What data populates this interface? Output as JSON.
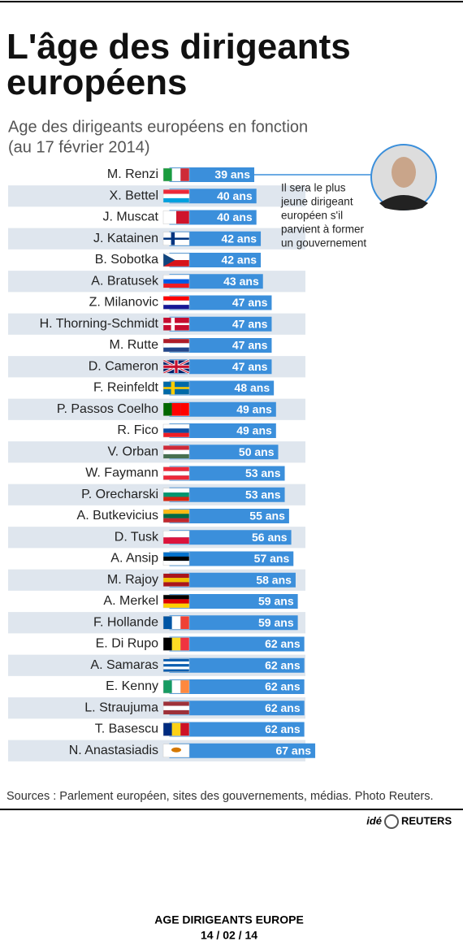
{
  "chart_data": {
    "type": "bar",
    "title": "L'âge des dirigeants européens",
    "subtitle": [
      "Age des dirigeants européens en fonction",
      "(au 17 février 2014)"
    ],
    "categories": [
      "M. Renzi",
      "X. Bettel",
      "J. Muscat",
      "J. Katainen",
      "B. Sobotka",
      "A. Bratusek",
      "Z. Milanovic",
      "H. Thorning-Schmidt",
      "M. Rutte",
      "D. Cameron",
      "F. Reinfeldt",
      "P. Passos Coelho",
      "R. Fico",
      "V. Orban",
      "W. Faymann",
      "P. Orecharski",
      "A. Butkevicius",
      "D. Tusk",
      "A. Ansip",
      "M. Rajoy",
      "A. Merkel",
      "F. Hollande",
      "E. Di Rupo",
      "A. Samaras",
      "E. Kenny",
      "L. Straujuma",
      "T. Basescu",
      "N. Anastasiadis"
    ],
    "values": [
      39,
      40,
      40,
      42,
      42,
      43,
      47,
      47,
      47,
      47,
      48,
      49,
      49,
      50,
      53,
      53,
      55,
      56,
      57,
      58,
      59,
      59,
      62,
      62,
      62,
      62,
      62,
      67
    ],
    "value_labels": [
      "39 ans",
      "40 ans",
      "40 ans",
      "42 ans",
      "42 ans",
      "43 ans",
      "47 ans",
      "47 ans",
      "47 ans",
      "47 ans",
      "48 ans",
      "49 ans",
      "49 ans",
      "50 ans",
      "53 ans",
      "53 ans",
      "55 ans",
      "56 ans",
      "57 ans",
      "58 ans",
      "59 ans",
      "59 ans",
      "62 ans",
      "62 ans",
      "62 ans",
      "62 ans",
      "62 ans",
      "67 ans"
    ],
    "color": "#3b8fdb",
    "annotation": [
      "Il sera le plus",
      "jeune dirigeant",
      "européen s'il",
      "parvient à former",
      "un gouvernement"
    ],
    "source": "Sources : Parlement européen, sites des gouvernements, médias. Photo Reuters.",
    "credit": [
      "idé",
      "REUTERS"
    ],
    "footer": [
      "AGE DIRIGEANTS EUROPE",
      "14 / 02 / 14"
    ]
  }
}
